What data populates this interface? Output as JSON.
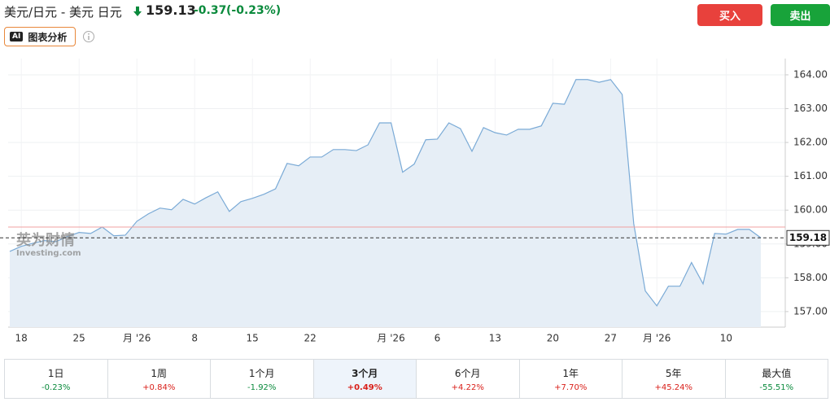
{
  "header": {
    "title": "美元/日元 - 美元 日元",
    "price": "159.13",
    "change": "-0.37",
    "change_pct": "(-0.23%)",
    "buy": "买入",
    "sell": "卖出",
    "ai_badge": "AI",
    "ai_label": "图表分析",
    "watermark": "英为财情",
    "watermark_sub": "Investing.com"
  },
  "chart_data": {
    "type": "area",
    "color": "#7aaad6",
    "fill": "#e6eef6",
    "x": [
      null,
      "18",
      null,
      null,
      null,
      null,
      "25",
      null,
      null,
      null,
      null,
      "月 '26",
      null,
      null,
      null,
      null,
      "8",
      null,
      null,
      null,
      null,
      "15",
      null,
      null,
      null,
      null,
      "22",
      null,
      null,
      null,
      null,
      null,
      null,
      "月 '26",
      null,
      null,
      null,
      "6",
      null,
      null,
      null,
      null,
      "13",
      null,
      null,
      null,
      null,
      "20",
      null,
      null,
      null,
      null,
      "27",
      null,
      null,
      null,
      "月 '26",
      null,
      null,
      null,
      null,
      null,
      "10",
      null,
      null,
      null
    ],
    "values": [
      158.78,
      158.93,
      159.02,
      159.1,
      159.07,
      159.22,
      159.34,
      159.31,
      159.5,
      159.24,
      159.26,
      159.67,
      159.89,
      160.06,
      160.01,
      160.32,
      160.18,
      160.37,
      160.54,
      159.96,
      160.25,
      160.35,
      160.47,
      160.63,
      161.38,
      161.31,
      161.57,
      161.57,
      161.79,
      161.79,
      161.76,
      161.93,
      162.58,
      162.58,
      161.12,
      161.36,
      162.08,
      162.1,
      162.58,
      162.41,
      161.74,
      162.44,
      162.29,
      162.22,
      162.39,
      162.39,
      162.49,
      163.16,
      163.13,
      163.86,
      163.86,
      163.78,
      163.86,
      163.42,
      159.6,
      157.61,
      157.17,
      157.75,
      157.75,
      158.45,
      157.82,
      159.31,
      159.29,
      159.43,
      159.43,
      159.18
    ],
    "ylim": [
      156.54,
      164.48
    ],
    "yticks": [
      {
        "value": 157,
        "label": "157.00"
      },
      {
        "value": 158,
        "label": "158.00"
      },
      {
        "value": 159,
        "label": "159.00"
      },
      {
        "value": 160,
        "label": "160.00"
      },
      {
        "value": 161,
        "label": "161.00"
      },
      {
        "value": 162,
        "label": "162.00"
      },
      {
        "value": 163,
        "label": "163.00"
      },
      {
        "value": 164,
        "label": "164.00"
      }
    ],
    "reference_line": 159.5,
    "grid": true
  },
  "periods": [
    {
      "label": "1日",
      "change": "-0.23%",
      "color": "#0a8a3c"
    },
    {
      "label": "1周",
      "change": "+0.84%",
      "color": "#d91e18"
    },
    {
      "label": "1个月",
      "change": "-1.92%",
      "color": "#0a8a3c"
    },
    {
      "label": "3个月",
      "change": "+0.49%",
      "color": "#d91e18",
      "selected": true
    },
    {
      "label": "6个月",
      "change": "+4.22%",
      "color": "#d91e18"
    },
    {
      "label": "1年",
      "change": "+7.70%",
      "color": "#d91e18"
    },
    {
      "label": "5年",
      "change": "+45.24%",
      "color": "#d91e18"
    },
    {
      "label": "最大值",
      "change": "-55.51%",
      "color": "#0a8a3c"
    }
  ]
}
